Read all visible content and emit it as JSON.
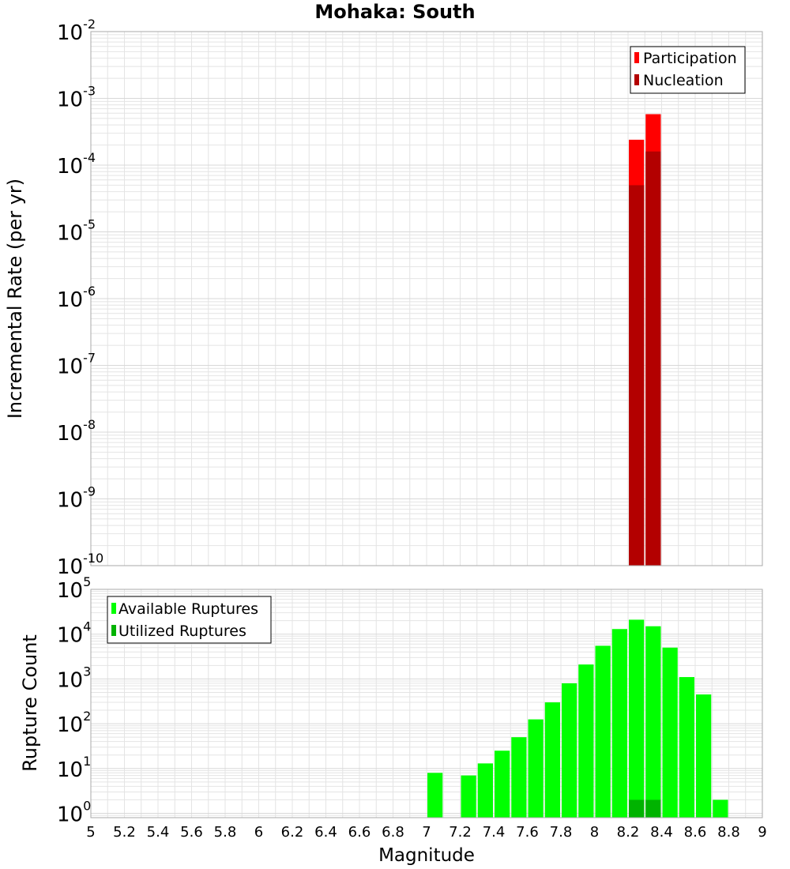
{
  "title": "Mohaka: South",
  "colors": {
    "participation": "#ff0000",
    "nucleation": "#b30000",
    "available": "#00ff00",
    "utilized": "#00b300",
    "grid": "#e4e4e4",
    "frame": "#aaaaaa"
  },
  "chart_data": [
    {
      "type": "bar",
      "panel": "top",
      "ylabel": "Incremental Rate (per yr)",
      "yscale": "log",
      "ylim": [
        1e-10,
        0.01
      ],
      "xlim": [
        5,
        9
      ],
      "bin_width": 0.1,
      "y_ticks": [
        {
          "base": "10",
          "exp": "-10",
          "value": 1e-10
        },
        {
          "base": "10",
          "exp": "-9",
          "value": 1e-09
        },
        {
          "base": "10",
          "exp": "-8",
          "value": 1e-08
        },
        {
          "base": "10",
          "exp": "-7",
          "value": 1e-07
        },
        {
          "base": "10",
          "exp": "-6",
          "value": 1e-06
        },
        {
          "base": "10",
          "exp": "-5",
          "value": 1e-05
        },
        {
          "base": "10",
          "exp": "-4",
          "value": 0.0001
        },
        {
          "base": "10",
          "exp": "-3",
          "value": 0.001
        },
        {
          "base": "10",
          "exp": "-2",
          "value": 0.01
        }
      ],
      "series": [
        {
          "name": "Participation",
          "color": "#ff0000",
          "x": [
            8.25,
            8.35
          ],
          "values": [
            0.00024,
            0.00058
          ]
        },
        {
          "name": "Nucleation",
          "color": "#b30000",
          "x": [
            8.25,
            8.35
          ],
          "values": [
            5e-05,
            0.00016
          ]
        }
      ],
      "legend": {
        "placement": "top-right"
      },
      "grid": true
    },
    {
      "type": "bar",
      "panel": "bottom",
      "ylabel": "Rupture Count",
      "xlabel": "Magnitude",
      "yscale": "log",
      "ylim": [
        0.8,
        100000
      ],
      "xlim": [
        5,
        9
      ],
      "bin_width": 0.1,
      "y_ticks": [
        {
          "base": "10",
          "exp": "0",
          "value": 1
        },
        {
          "base": "10",
          "exp": "1",
          "value": 10
        },
        {
          "base": "10",
          "exp": "2",
          "value": 100
        },
        {
          "base": "10",
          "exp": "3",
          "value": 1000
        },
        {
          "base": "10",
          "exp": "4",
          "value": 10000
        },
        {
          "base": "10",
          "exp": "5",
          "value": 100000
        }
      ],
      "x_ticks": [
        "5",
        "5.2",
        "5.4",
        "5.6",
        "5.8",
        "6",
        "6.2",
        "6.4",
        "6.6",
        "6.8",
        "7",
        "7.2",
        "7.4",
        "7.6",
        "7.8",
        "8",
        "8.2",
        "8.4",
        "8.6",
        "8.8",
        "9"
      ],
      "x_tick_values": [
        5,
        5.2,
        5.4,
        5.6,
        5.8,
        6,
        6.2,
        6.4,
        6.6,
        6.8,
        7,
        7.2,
        7.4,
        7.6,
        7.8,
        8,
        8.2,
        8.4,
        8.6,
        8.8,
        9
      ],
      "series": [
        {
          "name": "Available Ruptures",
          "color": "#00ff00",
          "x": [
            7.05,
            7.25,
            7.35,
            7.45,
            7.55,
            7.65,
            7.75,
            7.85,
            7.95,
            8.05,
            8.15,
            8.25,
            8.35,
            8.45,
            8.55,
            8.65,
            8.75
          ],
          "values": [
            8,
            7,
            13,
            25,
            50,
            125,
            300,
            800,
            2100,
            5500,
            13000,
            21000,
            15000,
            5000,
            1100,
            450,
            2
          ]
        },
        {
          "name": "Utilized Ruptures",
          "color": "#00b300",
          "x": [
            8.25,
            8.35
          ],
          "values": [
            2,
            2
          ]
        }
      ],
      "legend": {
        "placement": "top-left"
      },
      "grid": true
    }
  ]
}
